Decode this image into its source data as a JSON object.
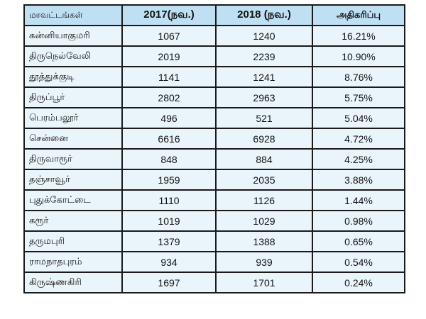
{
  "table": {
    "headers": {
      "district": "மாவட்டங்கள்",
      "year2017": "2017(நவ.)",
      "year2018": "2018  (நவ.)",
      "increase": "அதிகரிப்பு"
    },
    "rows": [
      {
        "district": "கன்னியாகுமரி",
        "v2017": "1067",
        "v2018": "1240",
        "increase": "16.21%"
      },
      {
        "district": "திருநெல்வேலி",
        "v2017": "2019",
        "v2018": "2239",
        "increase": "10.90%"
      },
      {
        "district": "தூத்துக்குடி",
        "v2017": "1141",
        "v2018": "1241",
        "increase": "8.76%"
      },
      {
        "district": "திருப்பூர்",
        "v2017": "2802",
        "v2018": "2963",
        "increase": "5.75%"
      },
      {
        "district": "பெரம்பலூர்",
        "v2017": "496",
        "v2018": "521",
        "increase": "5.04%"
      },
      {
        "district": "சென்னை",
        "v2017": "6616",
        "v2018": "6928",
        "increase": "4.72%"
      },
      {
        "district": "திருவாரூர்",
        "v2017": "848",
        "v2018": "884",
        "increase": "4.25%"
      },
      {
        "district": "தஞ்சாவூர்",
        "v2017": "1959",
        "v2018": "2035",
        "increase": "3.88%"
      },
      {
        "district": "புதுக்கோட்டை",
        "v2017": "1110",
        "v2018": "1126",
        "increase": "1.44%"
      },
      {
        "district": "கரூர்",
        "v2017": "1019",
        "v2018": "1029",
        "increase": "0.98%"
      },
      {
        "district": "தருமபுரி",
        "v2017": "1379",
        "v2018": "1388",
        "increase": "0.65%"
      },
      {
        "district": "ராமநாதபுரம்",
        "v2017": "934",
        "v2018": "939",
        "increase": "0.54%"
      },
      {
        "district": "கிருஷ்ணகிரி",
        "v2017": "1697",
        "v2018": "1701",
        "increase": "0.24%"
      }
    ]
  },
  "colors": {
    "header_bg": "#bfe0f3",
    "cell_bg": "#eaf5fb",
    "border": "#1a1a1a"
  }
}
